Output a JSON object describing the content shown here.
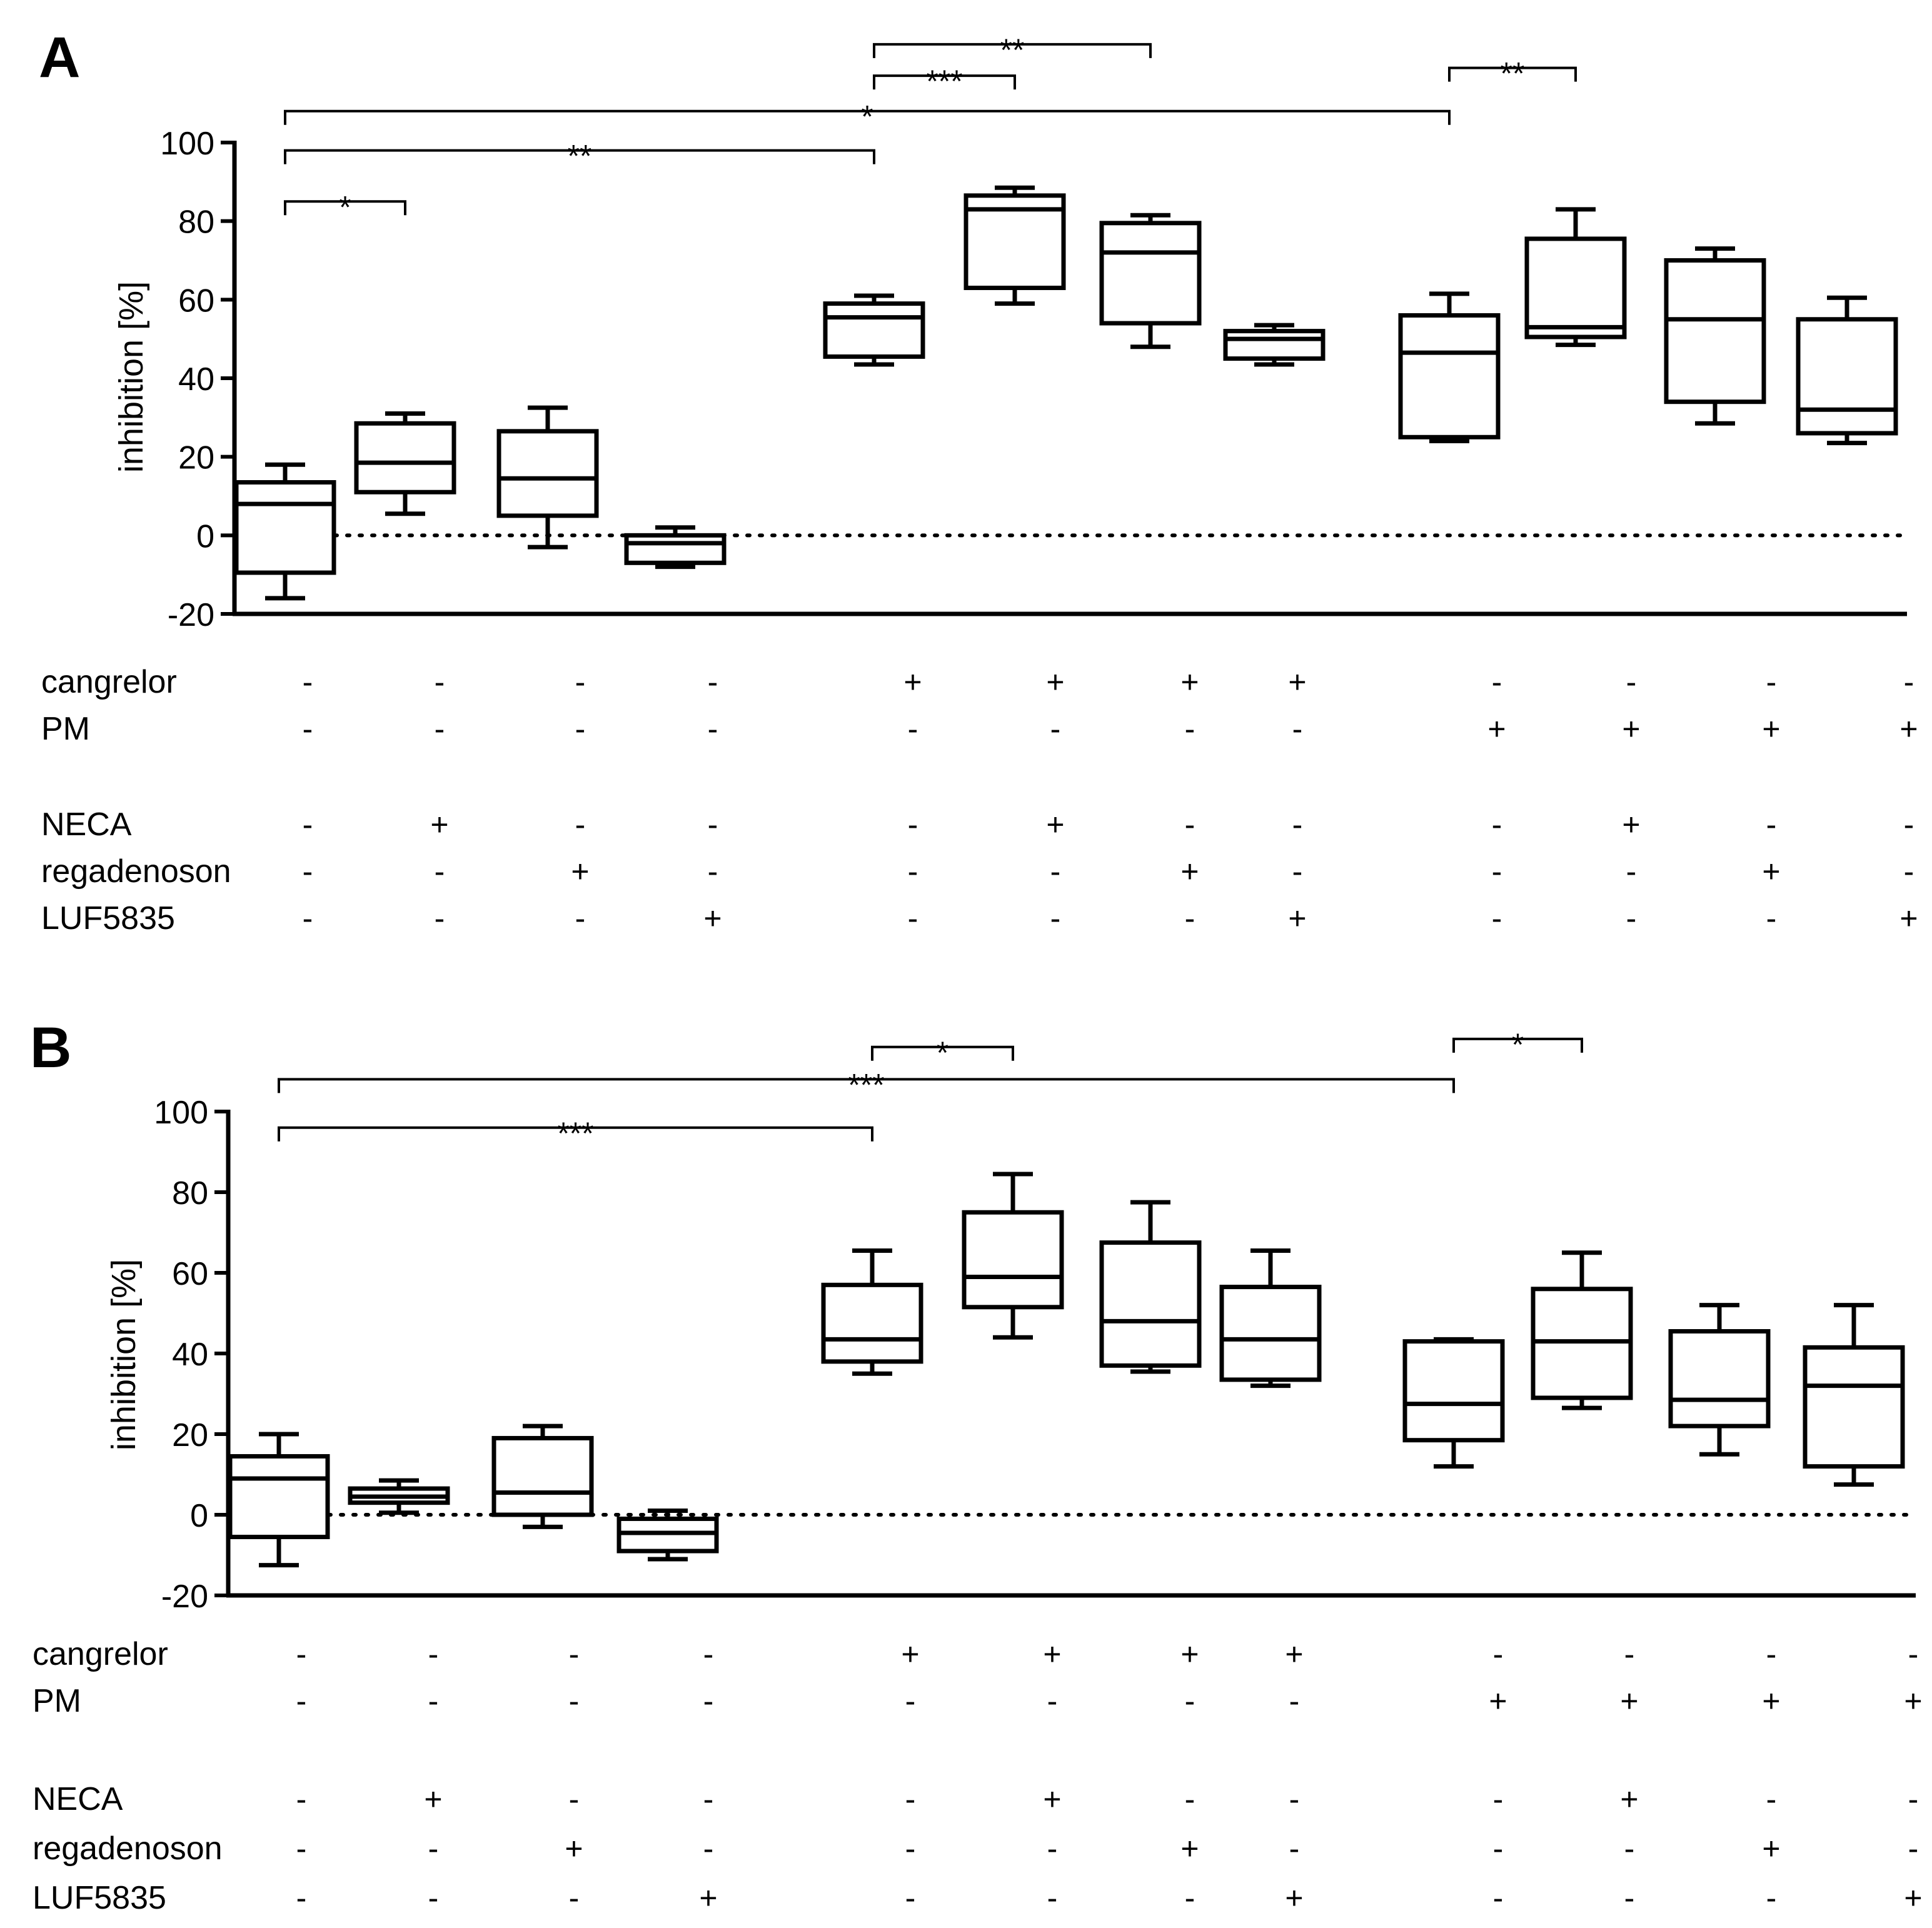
{
  "panel_labels": [
    "A",
    "B"
  ],
  "treatment_rows": [
    {
      "label": "cangrelor",
      "signs": [
        "-",
        "-",
        "-",
        "-",
        "+",
        "+",
        "+",
        "+",
        "-",
        "-",
        "-",
        "-"
      ]
    },
    {
      "label": "PM",
      "signs": [
        "-",
        "-",
        "-",
        "-",
        "-",
        "-",
        "-",
        "-",
        "+",
        "+",
        "+",
        "+"
      ]
    },
    {
      "label": "NECA",
      "signs": [
        "-",
        "+",
        "-",
        "-",
        "-",
        "+",
        "-",
        "-",
        "-",
        "+",
        "-",
        "-"
      ]
    },
    {
      "label": "regadenoson",
      "signs": [
        "-",
        "-",
        "+",
        "-",
        "-",
        "-",
        "+",
        "-",
        "-",
        "-",
        "+",
        "-"
      ]
    },
    {
      "label": "LUF5835",
      "signs": [
        "-",
        "-",
        "-",
        "+",
        "-",
        "-",
        "-",
        "+",
        "-",
        "-",
        "-",
        "+"
      ]
    }
  ],
  "chart_data": [
    {
      "type": "box",
      "panel": "A",
      "ylabel": "inhibition [%]",
      "ylim": [
        -20,
        100
      ],
      "yticks": [
        "-20",
        "0",
        "20",
        "40",
        "60",
        "80",
        "100"
      ],
      "reference_line": 0,
      "boxes": [
        {
          "min": -16,
          "q1": -9.5,
          "median": 8,
          "q3": 13.5,
          "max": 18
        },
        {
          "min": 5.5,
          "q1": 11,
          "median": 18.5,
          "q3": 28.5,
          "max": 31
        },
        {
          "min": -3,
          "q1": 5,
          "median": 14.5,
          "q3": 26.5,
          "max": 32.5
        },
        {
          "min": -8,
          "q1": -7,
          "median": -2,
          "q3": 0,
          "max": 2
        },
        {
          "min": 43.5,
          "q1": 45.5,
          "median": 55.5,
          "q3": 59,
          "max": 61
        },
        {
          "min": 59,
          "q1": 63,
          "median": 83,
          "q3": 86.5,
          "max": 88.5
        },
        {
          "min": 48,
          "q1": 54,
          "median": 72,
          "q3": 79.5,
          "max": 81.5
        },
        {
          "min": 43.5,
          "q1": 45,
          "median": 50,
          "q3": 52,
          "max": 53.5
        },
        {
          "min": 24,
          "q1": 25,
          "median": 46.5,
          "q3": 56,
          "max": 61.5
        },
        {
          "min": 48.5,
          "q1": 50.5,
          "median": 53,
          "q3": 75.5,
          "max": 83
        },
        {
          "min": 28.5,
          "q1": 34,
          "median": 55,
          "q3": 70,
          "max": 73
        },
        {
          "min": 23.5,
          "q1": 26,
          "median": 32,
          "q3": 55,
          "max": 60.5
        }
      ],
      "significance": [
        {
          "from": 0,
          "to": 1,
          "label": "*",
          "y": 85
        },
        {
          "from": 0,
          "to": 4,
          "label": "**",
          "y": 98
        },
        {
          "from": 0,
          "to": 8,
          "label": "*",
          "y": 108
        },
        {
          "from": 4,
          "to": 5,
          "label": "***",
          "y": 117
        },
        {
          "from": 4,
          "to": 6,
          "label": "**",
          "y": 125
        },
        {
          "from": 8,
          "to": 9,
          "label": "**",
          "y": 119
        }
      ]
    },
    {
      "type": "box",
      "panel": "B",
      "ylabel": "inhibition [%]",
      "ylim": [
        -20,
        100
      ],
      "yticks": [
        "-20",
        "0",
        "20",
        "40",
        "60",
        "80",
        "100"
      ],
      "reference_line": 0,
      "boxes": [
        {
          "min": -12.5,
          "q1": -5.5,
          "median": 9,
          "q3": 14.5,
          "max": 20
        },
        {
          "min": 0.5,
          "q1": 3,
          "median": 4.5,
          "q3": 6.5,
          "max": 8.5
        },
        {
          "min": -3,
          "q1": 0,
          "median": 5.5,
          "q3": 19,
          "max": 22
        },
        {
          "min": -11,
          "q1": -9,
          "median": -4.5,
          "q3": -1,
          "max": 1
        },
        {
          "min": 35,
          "q1": 38,
          "median": 43.5,
          "q3": 57,
          "max": 65.5
        },
        {
          "min": 44,
          "q1": 51.5,
          "median": 59,
          "q3": 75,
          "max": 84.5
        },
        {
          "min": 35.5,
          "q1": 37,
          "median": 48,
          "q3": 67.5,
          "max": 77.5
        },
        {
          "min": 32,
          "q1": 33.5,
          "median": 43.5,
          "q3": 56.5,
          "max": 65.5
        },
        {
          "min": 12,
          "q1": 18.5,
          "median": 27.5,
          "q3": 43,
          "max": 43.5
        },
        {
          "min": 26.5,
          "q1": 29,
          "median": 43,
          "q3": 56,
          "max": 65
        },
        {
          "min": 15,
          "q1": 22,
          "median": 28.5,
          "q3": 45.5,
          "max": 52
        },
        {
          "min": 7.5,
          "q1": 12,
          "median": 32,
          "q3": 41.5,
          "max": 52
        }
      ],
      "significance": [
        {
          "from": 0,
          "to": 4,
          "label": "***",
          "y": 96
        },
        {
          "from": 0,
          "to": 8,
          "label": "***",
          "y": 108
        },
        {
          "from": 4,
          "to": 5,
          "label": "*",
          "y": 116
        },
        {
          "from": 8,
          "to": 9,
          "label": "*",
          "y": 118
        }
      ]
    }
  ]
}
